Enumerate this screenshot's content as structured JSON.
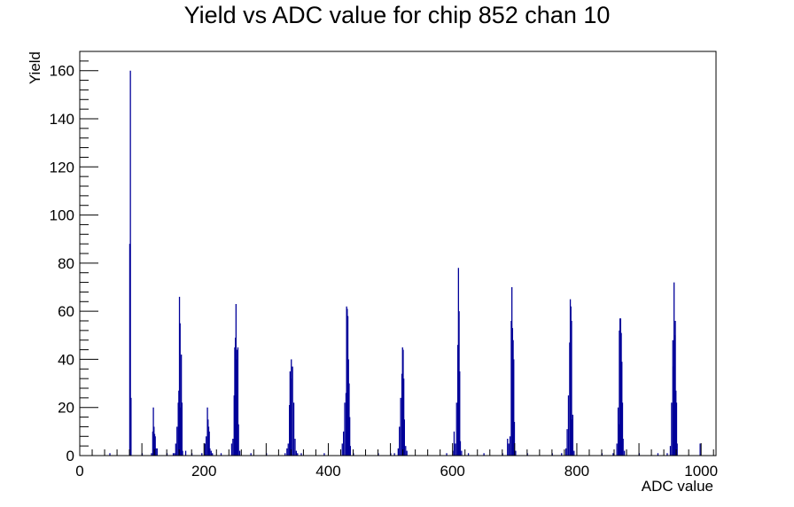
{
  "chart_data": {
    "type": "bar",
    "title": "Yield vs ADC value for chip 852 chan 10",
    "xlabel": "ADC value",
    "ylabel": "Yield",
    "xlim": [
      0,
      1024
    ],
    "ylim": [
      0,
      168
    ],
    "x_ticks": [
      0,
      200,
      400,
      600,
      800,
      1000
    ],
    "y_ticks": [
      0,
      20,
      40,
      60,
      80,
      100,
      120,
      140,
      160
    ],
    "color": "#000099",
    "grid": false,
    "series": [
      {
        "values": [
          [
            48,
            1
          ],
          [
            80,
            88
          ],
          [
            81,
            160
          ],
          [
            82,
            24
          ],
          [
            100,
            1
          ],
          [
            115,
            1
          ],
          [
            117,
            10
          ],
          [
            118,
            20
          ],
          [
            119,
            12
          ],
          [
            120,
            9
          ],
          [
            121,
            8
          ],
          [
            122,
            3
          ],
          [
            124,
            3
          ],
          [
            140,
            1
          ],
          [
            150,
            1
          ],
          [
            152,
            1
          ],
          [
            154,
            5
          ],
          [
            156,
            12
          ],
          [
            158,
            22
          ],
          [
            159,
            27
          ],
          [
            160,
            66
          ],
          [
            161,
            55
          ],
          [
            162,
            20
          ],
          [
            163,
            42
          ],
          [
            164,
            22
          ],
          [
            165,
            2
          ],
          [
            170,
            2
          ],
          [
            180,
            1
          ],
          [
            196,
            1
          ],
          [
            201,
            5
          ],
          [
            203,
            8
          ],
          [
            205,
            20
          ],
          [
            206,
            15
          ],
          [
            207,
            12
          ],
          [
            208,
            10
          ],
          [
            209,
            3
          ],
          [
            211,
            2
          ],
          [
            213,
            1
          ],
          [
            227,
            1
          ],
          [
            244,
            5
          ],
          [
            246,
            7
          ],
          [
            248,
            25
          ],
          [
            249,
            45
          ],
          [
            250,
            49
          ],
          [
            251,
            63
          ],
          [
            252,
            40
          ],
          [
            253,
            44
          ],
          [
            254,
            45
          ],
          [
            255,
            13
          ],
          [
            257,
            2
          ],
          [
            275,
            1
          ],
          [
            300,
            1
          ],
          [
            330,
            1
          ],
          [
            333,
            3
          ],
          [
            335,
            5
          ],
          [
            337,
            21
          ],
          [
            338,
            35
          ],
          [
            339,
            32
          ],
          [
            340,
            40
          ],
          [
            342,
            37
          ],
          [
            344,
            22
          ],
          [
            346,
            7
          ],
          [
            348,
            2
          ],
          [
            350,
            1
          ],
          [
            356,
            1
          ],
          [
            393,
            1
          ],
          [
            422,
            5
          ],
          [
            424,
            10
          ],
          [
            426,
            22
          ],
          [
            428,
            26
          ],
          [
            429,
            62
          ],
          [
            430,
            61
          ],
          [
            431,
            58
          ],
          [
            432,
            40
          ],
          [
            433,
            30
          ],
          [
            434,
            16
          ],
          [
            435,
            4
          ],
          [
            440,
            1
          ],
          [
            480,
            1
          ],
          [
            500,
            1
          ],
          [
            506,
            1
          ],
          [
            512,
            3
          ],
          [
            514,
            12
          ],
          [
            516,
            24
          ],
          [
            518,
            34
          ],
          [
            519,
            45
          ],
          [
            520,
            44
          ],
          [
            521,
            32
          ],
          [
            522,
            15
          ],
          [
            524,
            4
          ],
          [
            526,
            2
          ],
          [
            590,
            1
          ],
          [
            600,
            2
          ],
          [
            602,
            10
          ],
          [
            604,
            5
          ],
          [
            606,
            22
          ],
          [
            608,
            46
          ],
          [
            609,
            78
          ],
          [
            610,
            60
          ],
          [
            611,
            35
          ],
          [
            612,
            6
          ],
          [
            614,
            2
          ],
          [
            625,
            1
          ],
          [
            650,
            1
          ],
          [
            680,
            1
          ],
          [
            688,
            7
          ],
          [
            690,
            5
          ],
          [
            692,
            8
          ],
          [
            694,
            56
          ],
          [
            695,
            70
          ],
          [
            696,
            53
          ],
          [
            697,
            48
          ],
          [
            698,
            40
          ],
          [
            699,
            14
          ],
          [
            701,
            2
          ],
          [
            720,
            1
          ],
          [
            760,
            1
          ],
          [
            775,
            1
          ],
          [
            782,
            3
          ],
          [
            784,
            11
          ],
          [
            786,
            25
          ],
          [
            788,
            47
          ],
          [
            789,
            65
          ],
          [
            790,
            62
          ],
          [
            791,
            56
          ],
          [
            792,
            15
          ],
          [
            793,
            17
          ],
          [
            795,
            2
          ],
          [
            840,
            1
          ],
          [
            858,
            1
          ],
          [
            864,
            5
          ],
          [
            866,
            20
          ],
          [
            867,
            13
          ],
          [
            868,
            52
          ],
          [
            869,
            57
          ],
          [
            870,
            57
          ],
          [
            871,
            51
          ],
          [
            872,
            39
          ],
          [
            873,
            22
          ],
          [
            874,
            7
          ],
          [
            876,
            2
          ],
          [
            900,
            1
          ],
          [
            930,
            1
          ],
          [
            945,
            1
          ],
          [
            950,
            4
          ],
          [
            952,
            22
          ],
          [
            954,
            48
          ],
          [
            955,
            37
          ],
          [
            956,
            72
          ],
          [
            957,
            50
          ],
          [
            958,
            56
          ],
          [
            959,
            27
          ],
          [
            960,
            22
          ],
          [
            961,
            5
          ],
          [
            998,
            5
          ]
        ]
      }
    ]
  }
}
